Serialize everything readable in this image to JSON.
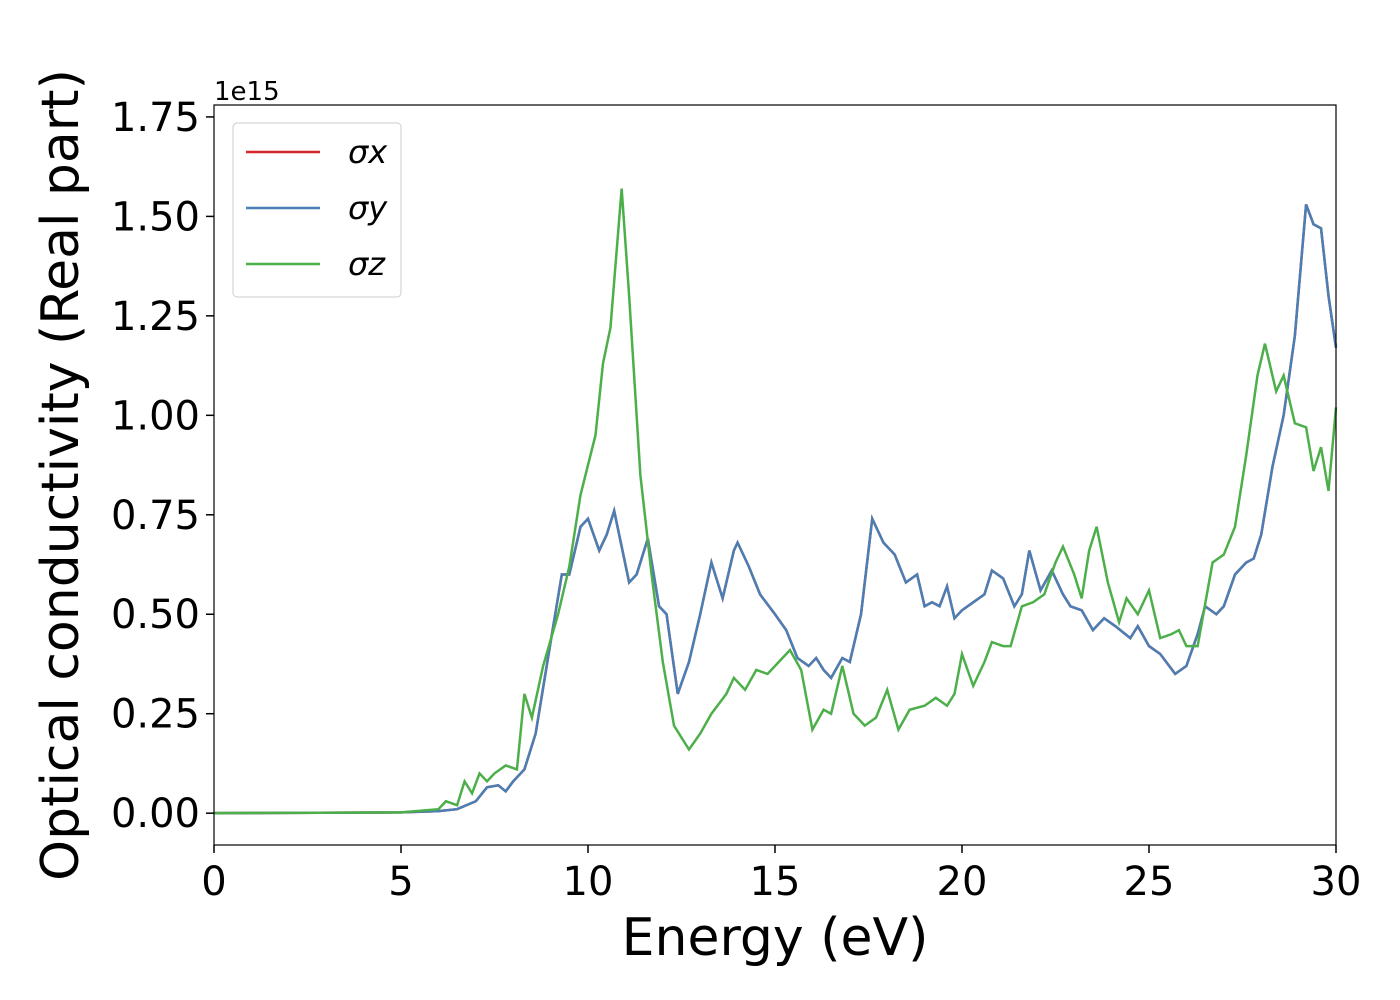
{
  "chart_data": {
    "type": "line",
    "xlabel": "Energy (eV)",
    "ylabel": "Optical conductivity (Real part)",
    "y_offset_label": "1e15",
    "xlim": [
      0,
      30
    ],
    "ylim": [
      -0.08,
      1.78
    ],
    "xticks": [
      0,
      5,
      10,
      15,
      20,
      25,
      30
    ],
    "yticks": [
      {
        "value": 0,
        "label": "0.00"
      },
      0.25,
      {
        "value": 0.5,
        "label": "0.50"
      },
      0.75,
      {
        "value": 1,
        "label": "1.00"
      },
      1.25,
      {
        "value": 1.5,
        "label": "1.50"
      },
      1.75
    ],
    "legend": "upper left",
    "series": [
      {
        "name": "σx",
        "color": "#d62728",
        "x": [
          0,
          5,
          6,
          6.5,
          7,
          7.3,
          7.6,
          7.8,
          8,
          8.3,
          8.6,
          9,
          9.3,
          9.5,
          9.8,
          10,
          10.3,
          10.5,
          10.7,
          10.9,
          11.1,
          11.3,
          11.6,
          11.9,
          12.1,
          12.4,
          12.7,
          13,
          13.3,
          13.6,
          13.9,
          14,
          14.3,
          14.6,
          15,
          15.3,
          15.6,
          15.9,
          16.1,
          16.3,
          16.5,
          16.8,
          17,
          17.3,
          17.6,
          17.9,
          18.2,
          18.5,
          18.8,
          19,
          19.2,
          19.4,
          19.6,
          19.8,
          20,
          20.3,
          20.6,
          20.8,
          21.1,
          21.4,
          21.6,
          21.8,
          22.1,
          22.4,
          22.7,
          22.9,
          23.2,
          23.5,
          23.8,
          24.1,
          24.5,
          24.7,
          25,
          25.3,
          25.7,
          26,
          26.3,
          26.5,
          26.8,
          27,
          27.3,
          27.6,
          27.8,
          28,
          28.3,
          28.6,
          28.9,
          29.2,
          29.4,
          29.6,
          29.8,
          30
        ],
        "values": [
          0,
          0.002,
          0.005,
          0.01,
          0.03,
          0.065,
          0.07,
          0.055,
          0.08,
          0.11,
          0.2,
          0.43,
          0.6,
          0.6,
          0.72,
          0.74,
          0.66,
          0.7,
          0.76,
          0.67,
          0.58,
          0.6,
          0.69,
          0.52,
          0.5,
          0.3,
          0.38,
          0.5,
          0.63,
          0.54,
          0.66,
          0.68,
          0.62,
          0.55,
          0.5,
          0.46,
          0.39,
          0.37,
          0.39,
          0.36,
          0.34,
          0.39,
          0.38,
          0.5,
          0.74,
          0.68,
          0.65,
          0.58,
          0.6,
          0.52,
          0.53,
          0.52,
          0.57,
          0.49,
          0.51,
          0.53,
          0.55,
          0.61,
          0.59,
          0.52,
          0.55,
          0.66,
          0.56,
          0.61,
          0.55,
          0.52,
          0.51,
          0.46,
          0.49,
          0.47,
          0.44,
          0.47,
          0.42,
          0.4,
          0.35,
          0.37,
          0.45,
          0.52,
          0.5,
          0.52,
          0.6,
          0.63,
          0.64,
          0.7,
          0.87,
          1.0,
          1.2,
          1.53,
          1.48,
          1.47,
          1.3,
          1.17
        ]
      },
      {
        "name": "σy",
        "color": "#4a7fb5",
        "x": [
          0,
          5,
          6,
          6.5,
          7,
          7.3,
          7.6,
          7.8,
          8,
          8.3,
          8.6,
          9,
          9.3,
          9.5,
          9.8,
          10,
          10.3,
          10.5,
          10.7,
          10.9,
          11.1,
          11.3,
          11.6,
          11.9,
          12.1,
          12.4,
          12.7,
          13,
          13.3,
          13.6,
          13.9,
          14,
          14.3,
          14.6,
          15,
          15.3,
          15.6,
          15.9,
          16.1,
          16.3,
          16.5,
          16.8,
          17,
          17.3,
          17.6,
          17.9,
          18.2,
          18.5,
          18.8,
          19,
          19.2,
          19.4,
          19.6,
          19.8,
          20,
          20.3,
          20.6,
          20.8,
          21.1,
          21.4,
          21.6,
          21.8,
          22.1,
          22.4,
          22.7,
          22.9,
          23.2,
          23.5,
          23.8,
          24.1,
          24.5,
          24.7,
          25,
          25.3,
          25.7,
          26,
          26.3,
          26.5,
          26.8,
          27,
          27.3,
          27.6,
          27.8,
          28,
          28.3,
          28.6,
          28.9,
          29.2,
          29.4,
          29.6,
          29.8,
          30
        ],
        "values": [
          0,
          0.002,
          0.005,
          0.01,
          0.03,
          0.065,
          0.07,
          0.055,
          0.08,
          0.11,
          0.2,
          0.43,
          0.6,
          0.6,
          0.72,
          0.74,
          0.66,
          0.7,
          0.76,
          0.67,
          0.58,
          0.6,
          0.69,
          0.52,
          0.5,
          0.3,
          0.38,
          0.5,
          0.63,
          0.54,
          0.66,
          0.68,
          0.62,
          0.55,
          0.5,
          0.46,
          0.39,
          0.37,
          0.39,
          0.36,
          0.34,
          0.39,
          0.38,
          0.5,
          0.74,
          0.68,
          0.65,
          0.58,
          0.6,
          0.52,
          0.53,
          0.52,
          0.57,
          0.49,
          0.51,
          0.53,
          0.55,
          0.61,
          0.59,
          0.52,
          0.55,
          0.66,
          0.56,
          0.61,
          0.55,
          0.52,
          0.51,
          0.46,
          0.49,
          0.47,
          0.44,
          0.47,
          0.42,
          0.4,
          0.35,
          0.37,
          0.45,
          0.52,
          0.5,
          0.52,
          0.6,
          0.63,
          0.64,
          0.7,
          0.87,
          1.0,
          1.2,
          1.53,
          1.48,
          1.47,
          1.3,
          1.17
        ]
      },
      {
        "name": "σz",
        "color": "#4daf4a",
        "x": [
          0,
          5,
          6,
          6.2,
          6.5,
          6.7,
          6.9,
          7.1,
          7.3,
          7.5,
          7.8,
          8.1,
          8.3,
          8.5,
          8.8,
          9.2,
          9.5,
          9.8,
          10.2,
          10.4,
          10.6,
          10.9,
          11.1,
          11.4,
          11.7,
          12,
          12.3,
          12.7,
          13,
          13.3,
          13.7,
          13.9,
          14.2,
          14.5,
          14.8,
          15.1,
          15.4,
          15.7,
          16,
          16.3,
          16.5,
          16.8,
          17.1,
          17.4,
          17.7,
          18,
          18.3,
          18.6,
          19,
          19.3,
          19.6,
          19.8,
          20,
          20.3,
          20.6,
          20.8,
          21.1,
          21.3,
          21.6,
          21.9,
          22.2,
          22.5,
          22.7,
          23,
          23.2,
          23.4,
          23.6,
          23.9,
          24.2,
          24.4,
          24.7,
          25,
          25.3,
          25.6,
          25.8,
          26,
          26.3,
          26.7,
          27,
          27.3,
          27.6,
          27.9,
          28.1,
          28.4,
          28.6,
          28.9,
          29.2,
          29.4,
          29.6,
          29.8,
          30
        ],
        "values": [
          0,
          0.002,
          0.01,
          0.03,
          0.02,
          0.08,
          0.05,
          0.1,
          0.08,
          0.1,
          0.12,
          0.11,
          0.3,
          0.24,
          0.37,
          0.5,
          0.62,
          0.8,
          0.95,
          1.13,
          1.22,
          1.57,
          1.3,
          0.85,
          0.6,
          0.38,
          0.22,
          0.16,
          0.2,
          0.25,
          0.3,
          0.34,
          0.31,
          0.36,
          0.35,
          0.38,
          0.41,
          0.36,
          0.21,
          0.26,
          0.25,
          0.37,
          0.25,
          0.22,
          0.24,
          0.31,
          0.21,
          0.26,
          0.27,
          0.29,
          0.27,
          0.3,
          0.4,
          0.32,
          0.38,
          0.43,
          0.42,
          0.42,
          0.52,
          0.53,
          0.55,
          0.63,
          0.67,
          0.6,
          0.54,
          0.66,
          0.72,
          0.58,
          0.48,
          0.54,
          0.5,
          0.56,
          0.44,
          0.45,
          0.46,
          0.42,
          0.42,
          0.63,
          0.65,
          0.72,
          0.9,
          1.1,
          1.18,
          1.06,
          1.1,
          0.98,
          0.97,
          0.86,
          0.92,
          0.81,
          1.02
        ]
      }
    ]
  }
}
